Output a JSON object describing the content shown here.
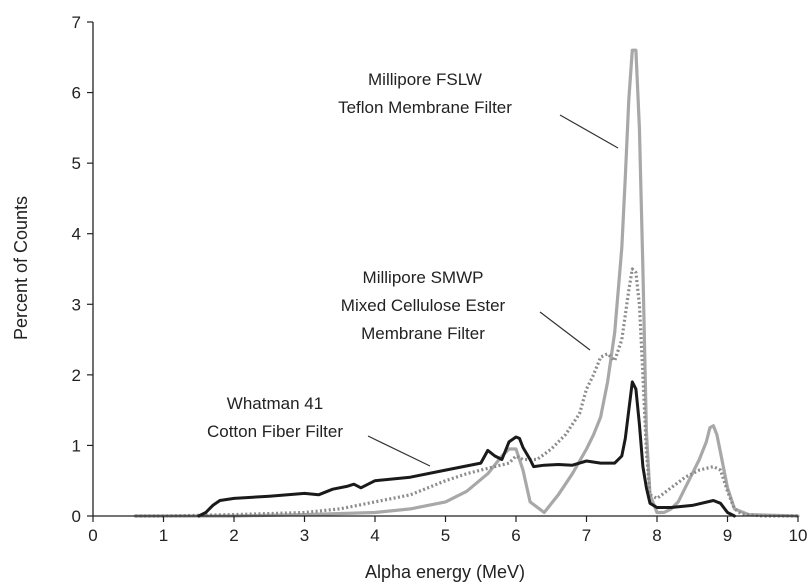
{
  "chart_data": {
    "type": "line",
    "xlabel": "Alpha energy (MeV)",
    "ylabel": "Percent of Counts",
    "xlim": [
      0,
      10
    ],
    "ylim": [
      0,
      7
    ],
    "x_ticks": [
      "0",
      "1",
      "2",
      "3",
      "4",
      "5",
      "6",
      "7",
      "8",
      "9",
      "10"
    ],
    "y_ticks": [
      "0",
      "1",
      "2",
      "3",
      "4",
      "5",
      "6",
      "7"
    ],
    "grid": false,
    "legend": "none (series identified by in-plot annotations)",
    "annotations": [
      {
        "id": "fslw",
        "lines": [
          "Millipore FSLW",
          "Teflon Membrane Filter"
        ],
        "points_to": "fslw",
        "at": [
          7.45,
          5.3
        ]
      },
      {
        "id": "smwp",
        "lines": [
          "Millipore SMWP",
          "Mixed Cellulose Ester",
          "Membrane Filter"
        ],
        "points_to": "smwp",
        "at": [
          7.0,
          2.3
        ]
      },
      {
        "id": "whatman",
        "lines": [
          "Whatman 41",
          "Cotton Fiber Filter"
        ],
        "points_to": "whatman",
        "at": [
          4.7,
          0.75
        ]
      }
    ],
    "series": [
      {
        "id": "fslw",
        "color": "#a8a8a8",
        "style": "solid",
        "x": [
          0.6,
          1.0,
          2.0,
          3.0,
          4.0,
          4.5,
          5.0,
          5.3,
          5.6,
          5.8,
          5.9,
          6.0,
          6.1,
          6.2,
          6.4,
          6.6,
          6.8,
          7.0,
          7.1,
          7.2,
          7.3,
          7.4,
          7.5,
          7.55,
          7.6,
          7.65,
          7.7,
          7.75,
          7.8,
          7.85,
          7.9,
          8.0,
          8.1,
          8.2,
          8.3,
          8.4,
          8.5,
          8.6,
          8.7,
          8.75,
          8.8,
          8.85,
          8.9,
          9.0,
          9.1,
          9.3,
          10.0
        ],
        "y": [
          0,
          0,
          0,
          0.02,
          0.05,
          0.1,
          0.2,
          0.35,
          0.6,
          0.85,
          0.95,
          0.95,
          0.65,
          0.2,
          0.05,
          0.3,
          0.6,
          0.95,
          1.15,
          1.4,
          1.9,
          2.6,
          3.8,
          4.8,
          5.9,
          6.6,
          6.6,
          5.5,
          3.5,
          1.2,
          0.3,
          0.05,
          0.05,
          0.1,
          0.2,
          0.4,
          0.6,
          0.8,
          1.05,
          1.25,
          1.28,
          1.15,
          0.9,
          0.4,
          0.1,
          0.02,
          0
        ]
      },
      {
        "id": "smwp",
        "color": "#8c8c8c",
        "style": "dotted",
        "x": [
          0.6,
          1.0,
          2.0,
          3.0,
          3.5,
          4.0,
          4.5,
          4.8,
          5.0,
          5.3,
          5.5,
          5.7,
          5.9,
          6.0,
          6.1,
          6.3,
          6.5,
          6.7,
          6.9,
          7.0,
          7.1,
          7.2,
          7.3,
          7.4,
          7.5,
          7.6,
          7.65,
          7.7,
          7.75,
          7.8,
          7.85,
          7.9,
          8.0,
          8.2,
          8.4,
          8.6,
          8.8,
          8.9,
          9.0,
          9.1,
          9.2,
          9.5,
          10.0
        ],
        "y": [
          0,
          0,
          0.02,
          0.05,
          0.1,
          0.2,
          0.3,
          0.42,
          0.5,
          0.6,
          0.65,
          0.7,
          0.75,
          0.85,
          0.8,
          0.8,
          0.95,
          1.15,
          1.45,
          1.8,
          2.0,
          2.25,
          2.3,
          2.2,
          2.5,
          3.2,
          3.5,
          3.45,
          3.0,
          2.0,
          0.9,
          0.3,
          0.25,
          0.4,
          0.55,
          0.65,
          0.7,
          0.65,
          0.35,
          0.1,
          0.03,
          0,
          0
        ]
      },
      {
        "id": "whatman",
        "color": "#1a1a1a",
        "style": "solid",
        "x": [
          1.5,
          1.6,
          1.7,
          1.8,
          2.0,
          2.5,
          3.0,
          3.2,
          3.4,
          3.6,
          3.7,
          3.8,
          4.0,
          4.5,
          5.0,
          5.5,
          5.6,
          5.7,
          5.8,
          5.9,
          6.0,
          6.05,
          6.1,
          6.2,
          6.25,
          6.4,
          6.6,
          6.8,
          7.0,
          7.2,
          7.4,
          7.5,
          7.55,
          7.6,
          7.65,
          7.7,
          7.75,
          7.8,
          7.85,
          7.9,
          8.0,
          8.2,
          8.5,
          8.8,
          8.9,
          9.0,
          9.1
        ],
        "y": [
          0,
          0.05,
          0.15,
          0.22,
          0.25,
          0.28,
          0.32,
          0.3,
          0.38,
          0.42,
          0.45,
          0.4,
          0.5,
          0.55,
          0.65,
          0.75,
          0.93,
          0.85,
          0.8,
          1.05,
          1.12,
          1.1,
          0.97,
          0.8,
          0.7,
          0.72,
          0.73,
          0.72,
          0.78,
          0.75,
          0.75,
          0.85,
          1.1,
          1.5,
          1.9,
          1.8,
          1.3,
          0.7,
          0.4,
          0.18,
          0.12,
          0.12,
          0.15,
          0.22,
          0.18,
          0.05,
          0
        ]
      }
    ]
  }
}
